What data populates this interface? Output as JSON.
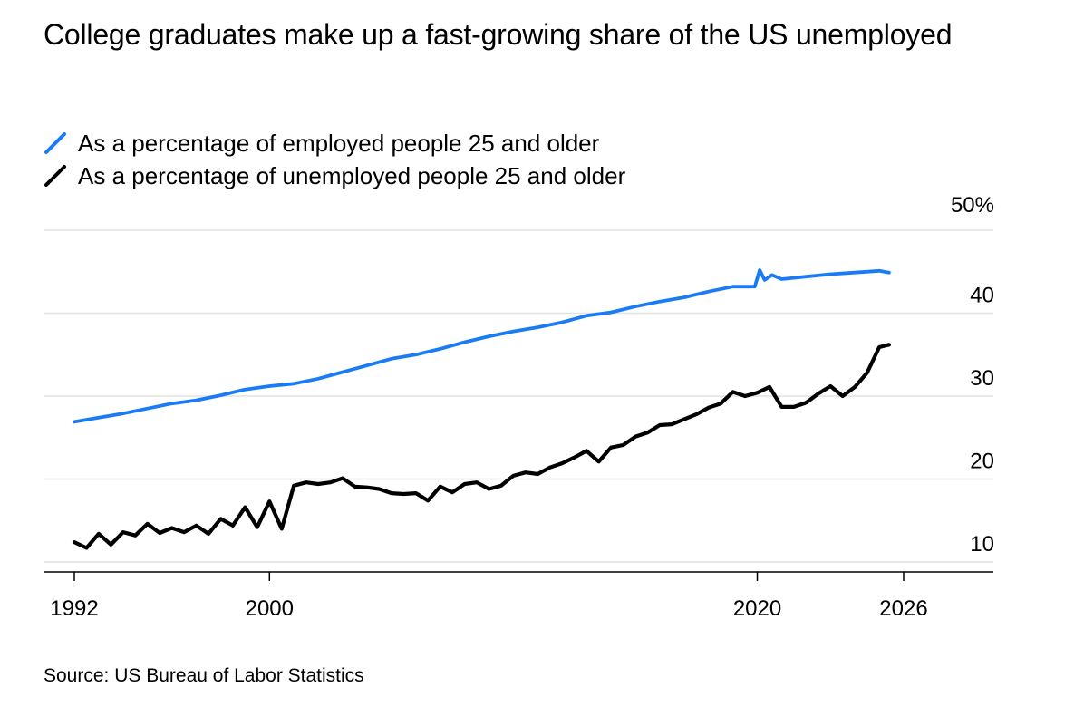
{
  "title": "College graduates make up a fast-growing share of the US unemployed",
  "source": "Source: US Bureau of Labor Statistics",
  "chart_data": {
    "type": "line",
    "title": "College graduates make up a fast-growing share of the US unemployed",
    "xlabel": "",
    "ylabel": "",
    "x_ticks": [
      "1992",
      "2000",
      "2020",
      "2026"
    ],
    "y_ticks": [
      "10",
      "20",
      "30",
      "40",
      "50%"
    ],
    "xlim": [
      1991.2,
      2029.3
    ],
    "ylim": [
      8.8,
      50
    ],
    "grid": true,
    "legend_position": "top-left",
    "series": [
      {
        "name": "As a percentage of employed people 25 and older",
        "color": "#1a7cf5",
        "x": [
          1992.0,
          1993.0,
          1994.0,
          1995.0,
          1996.0,
          1997.0,
          1998.0,
          1999.0,
          2000.0,
          2001.0,
          2002.0,
          2003.0,
          2004.0,
          2005.0,
          2006.0,
          2007.0,
          2008.0,
          2009.0,
          2010.0,
          2011.0,
          2012.0,
          2013.0,
          2014.0,
          2015.0,
          2016.0,
          2017.0,
          2018.0,
          2019.0,
          2019.9,
          2020.1,
          2020.3,
          2020.6,
          2021.0,
          2022.0,
          2023.0,
          2024.0,
          2025.0,
          2025.4
        ],
        "y": [
          26.9,
          27.4,
          27.9,
          28.5,
          29.1,
          29.5,
          30.1,
          30.8,
          31.2,
          31.5,
          32.1,
          32.9,
          33.7,
          34.5,
          35.0,
          35.7,
          36.5,
          37.2,
          37.8,
          38.3,
          38.9,
          39.7,
          40.1,
          40.8,
          41.4,
          41.9,
          42.6,
          43.2,
          43.2,
          45.2,
          44.0,
          44.6,
          44.1,
          44.4,
          44.7,
          44.9,
          45.1,
          44.9
        ]
      },
      {
        "name": "As a percentage of unemployed people 25 and older",
        "color": "#000000",
        "x": [
          1992.0,
          1992.5,
          1993.0,
          1993.5,
          1994.0,
          1994.5,
          1995.0,
          1995.5,
          1996.0,
          1996.5,
          1997.0,
          1997.5,
          1998.0,
          1998.5,
          1999.0,
          1999.5,
          2000.0,
          2000.5,
          2001.0,
          2001.5,
          2002.0,
          2002.5,
          2003.0,
          2003.5,
          2004.0,
          2004.5,
          2005.0,
          2005.5,
          2006.0,
          2006.5,
          2007.0,
          2007.5,
          2008.0,
          2008.5,
          2009.0,
          2009.5,
          2010.0,
          2010.5,
          2011.0,
          2011.5,
          2012.0,
          2012.5,
          2013.0,
          2013.5,
          2014.0,
          2014.5,
          2015.0,
          2015.5,
          2016.0,
          2016.5,
          2017.0,
          2017.5,
          2018.0,
          2018.5,
          2019.0,
          2019.5,
          2020.0,
          2020.5,
          2021.0,
          2021.5,
          2022.0,
          2022.5,
          2023.0,
          2023.5,
          2024.0,
          2024.5,
          2025.0,
          2025.4
        ],
        "y": [
          12.4,
          11.7,
          13.4,
          12.1,
          13.6,
          13.2,
          14.6,
          13.5,
          14.1,
          13.6,
          14.4,
          13.4,
          15.2,
          14.4,
          16.6,
          14.2,
          17.3,
          14.0,
          19.2,
          19.6,
          19.4,
          19.6,
          20.1,
          19.1,
          19.0,
          18.8,
          18.3,
          18.2,
          18.3,
          17.4,
          19.1,
          18.4,
          19.4,
          19.6,
          18.8,
          19.2,
          20.4,
          20.8,
          20.6,
          21.4,
          21.9,
          22.6,
          23.4,
          22.1,
          23.8,
          24.1,
          25.1,
          25.6,
          26.5,
          26.6,
          27.2,
          27.8,
          28.6,
          29.1,
          30.5,
          30.0,
          30.4,
          31.1,
          28.7,
          28.7,
          29.2,
          30.3,
          31.2,
          30.0,
          31.1,
          32.8,
          35.9,
          36.2
        ]
      }
    ]
  }
}
